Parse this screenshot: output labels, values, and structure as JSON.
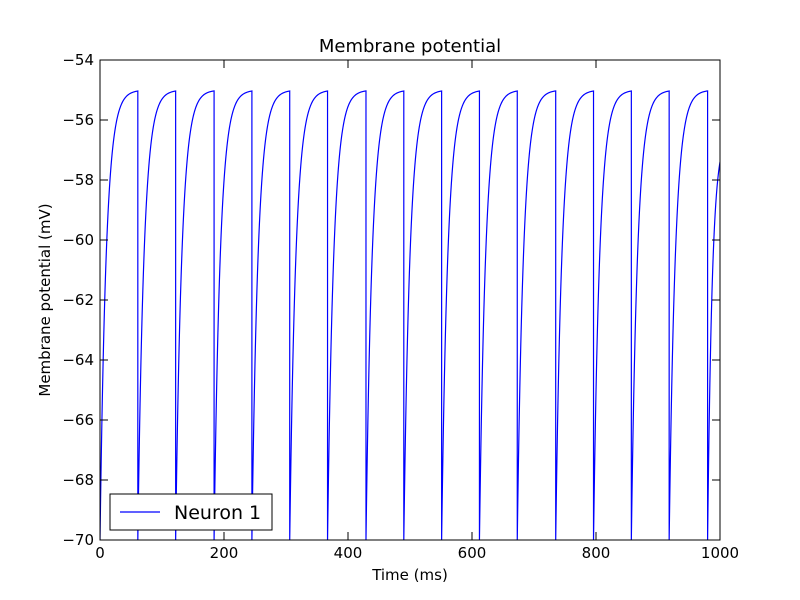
{
  "chart_data": {
    "type": "line",
    "title": "Membrane potential",
    "xlabel": "Time (ms)",
    "ylabel": "Membrane potential (mV)",
    "xlim": [
      0,
      1000
    ],
    "ylim": [
      -70,
      -54
    ],
    "xticks": [
      0,
      200,
      400,
      600,
      800,
      1000
    ],
    "yticks": [
      -70,
      -68,
      -66,
      -64,
      -62,
      -60,
      -58,
      -56,
      -54
    ],
    "xtick_labels": [
      "0",
      "200",
      "400",
      "600",
      "800",
      "1000"
    ],
    "ytick_labels": [
      "−70",
      "−68",
      "−66",
      "−64",
      "−62",
      "−60",
      "−58",
      "−56",
      "−54"
    ],
    "grid": false,
    "legend_position": "bottom-left",
    "series": [
      {
        "name": "Neuron 1",
        "color": "#0000ff",
        "reset_potential": -70,
        "asymptote": -55,
        "time_constant": 10,
        "spike_times": [
          61,
          122,
          184,
          245,
          306,
          367,
          429,
          490,
          551,
          612,
          673,
          735,
          796,
          857,
          918,
          980
        ],
        "t_end": 1000,
        "end_value": -57.4
      }
    ]
  }
}
